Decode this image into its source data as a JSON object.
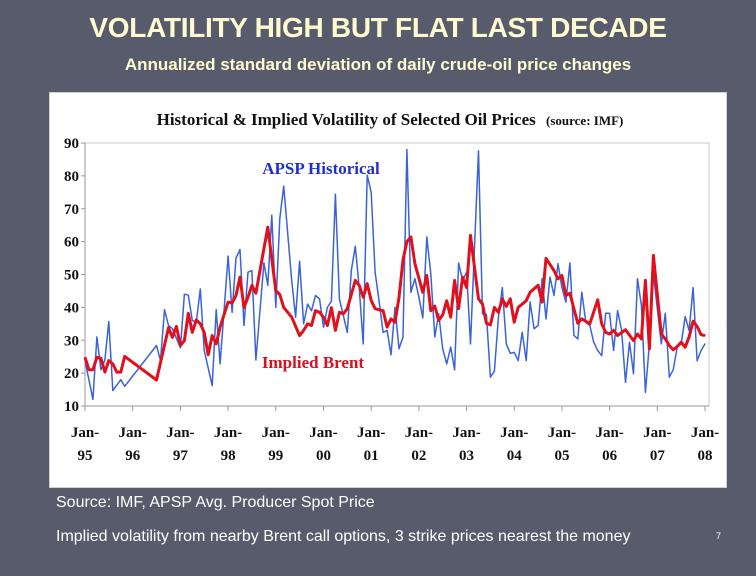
{
  "slide": {
    "title": "VOLATILITY HIGH BUT FLAT LAST DECADE",
    "subtitle": "Annualized standard deviation of daily crude-oil price changes",
    "source_note": "Source: IMF, APSP Avg. Producer Spot Price",
    "implied_note": "Implied volatility from nearby Brent call options, 3 strike prices nearest the money",
    "page_number": "7"
  },
  "chart_data": {
    "type": "line",
    "title": "Historical & Implied Volatility of Selected Oil Prices",
    "title_source": "(source: IMF)",
    "xlabel": "",
    "ylabel": "",
    "ylim": [
      10,
      90
    ],
    "yticks": [
      "90",
      "80",
      "70",
      "60",
      "50",
      "40",
      "30",
      "20",
      "10"
    ],
    "xlim": [
      "1995-01",
      "2008-02"
    ],
    "xticks": [
      {
        "date": "1995-01",
        "line1": "Jan-",
        "line2": "95"
      },
      {
        "date": "1996-01",
        "line1": "Jan-",
        "line2": "96"
      },
      {
        "date": "1997-01",
        "line1": "Jan-",
        "line2": "97"
      },
      {
        "date": "1998-01",
        "line1": "Jan-",
        "line2": "98"
      },
      {
        "date": "1999-01",
        "line1": "Jan-",
        "line2": "99"
      },
      {
        "date": "2000-01",
        "line1": "Jan-",
        "line2": "00"
      },
      {
        "date": "2001-01",
        "line1": "Jan-",
        "line2": "01"
      },
      {
        "date": "2002-01",
        "line1": "Jan-",
        "line2": "02"
      },
      {
        "date": "2003-01",
        "line1": "Jan-",
        "line2": "03"
      },
      {
        "date": "2004-01",
        "line1": "Jan-",
        "line2": "04"
      },
      {
        "date": "2005-01",
        "line1": "Jan-",
        "line2": "05"
      },
      {
        "date": "2006-01",
        "line1": "Jan-",
        "line2": "06"
      },
      {
        "date": "2007-01",
        "line1": "Jan-",
        "line2": "07"
      },
      {
        "date": "2008-01",
        "line1": "Jan-",
        "line2": "08"
      }
    ],
    "grid": false,
    "series": [
      {
        "name": "APSP Historical",
        "color": "#3a63d8",
        "label_color": "#2030c8",
        "points": [
          [
            "1995-01",
            23.8
          ],
          [
            "1995-03",
            12
          ],
          [
            "1995-04",
            31
          ],
          [
            "1995-05",
            21
          ],
          [
            "1995-06",
            24
          ],
          [
            "1995-07",
            35.7
          ],
          [
            "1995-08",
            14.7
          ],
          [
            "1995-10",
            18
          ],
          [
            "1995-11",
            16
          ],
          [
            "1996-07",
            28.4
          ],
          [
            "1996-08",
            23.8
          ],
          [
            "1996-09",
            39.3
          ],
          [
            "1996-10",
            34.5
          ],
          [
            "1996-11",
            33.5
          ],
          [
            "1997-01",
            27.7
          ],
          [
            "1997-02",
            44
          ],
          [
            "1997-03",
            43.7
          ],
          [
            "1997-04",
            36
          ],
          [
            "1997-05",
            35.5
          ],
          [
            "1997-06",
            45.6
          ],
          [
            "1997-07",
            26.9
          ],
          [
            "1997-09",
            16.2
          ],
          [
            "1997-10",
            39.3
          ],
          [
            "1997-11",
            22.8
          ],
          [
            "1998-01",
            55.6
          ],
          [
            "1998-02",
            38.5
          ],
          [
            "1998-03",
            55
          ],
          [
            "1998-04",
            57.6
          ],
          [
            "1998-05",
            34.5
          ],
          [
            "1998-06",
            50.7
          ],
          [
            "1998-07",
            51.2
          ],
          [
            "1998-08",
            24
          ],
          [
            "1998-10",
            53.5
          ],
          [
            "1998-11",
            46.7
          ],
          [
            "1998-12",
            68
          ],
          [
            "1999-01",
            40
          ],
          [
            "1999-02",
            67
          ],
          [
            "1999-03",
            76.9
          ],
          [
            "1999-05",
            48.2
          ],
          [
            "1999-06",
            37
          ],
          [
            "1999-07",
            54
          ],
          [
            "1999-08",
            35
          ],
          [
            "1999-09",
            41
          ],
          [
            "1999-10",
            39
          ],
          [
            "1999-11",
            43.6
          ],
          [
            "1999-12",
            42.6
          ],
          [
            "2000-01",
            34
          ],
          [
            "2000-02",
            40
          ],
          [
            "2000-03",
            41.9
          ],
          [
            "2000-04",
            74.4
          ],
          [
            "2000-05",
            42.6
          ],
          [
            "2000-07",
            32.4
          ],
          [
            "2000-08",
            51.2
          ],
          [
            "2000-09",
            58.6
          ],
          [
            "2000-10",
            46
          ],
          [
            "2000-11",
            28.9
          ],
          [
            "2000-12",
            80.2
          ],
          [
            "2001-01",
            75
          ],
          [
            "2001-02",
            50.7
          ],
          [
            "2001-03",
            41.9
          ],
          [
            "2001-04",
            32.4
          ],
          [
            "2001-05",
            33
          ],
          [
            "2001-06",
            25.6
          ],
          [
            "2001-07",
            40
          ],
          [
            "2001-08",
            27.4
          ],
          [
            "2001-09",
            31
          ],
          [
            "2001-10",
            88
          ],
          [
            "2001-11",
            44.6
          ],
          [
            "2001-12",
            48.7
          ],
          [
            "2002-01",
            43.1
          ],
          [
            "2002-02",
            36.8
          ],
          [
            "2002-03",
            61.4
          ],
          [
            "2002-04",
            50.2
          ],
          [
            "2002-05",
            31
          ],
          [
            "2002-06",
            38
          ],
          [
            "2002-07",
            27.4
          ],
          [
            "2002-08",
            22.8
          ],
          [
            "2002-09",
            27.9
          ],
          [
            "2002-10",
            21
          ],
          [
            "2002-11",
            53.5
          ],
          [
            "2002-12",
            48.2
          ],
          [
            "2003-01",
            50.7
          ],
          [
            "2003-02",
            28.9
          ],
          [
            "2003-04",
            87.6
          ],
          [
            "2003-05",
            38
          ],
          [
            "2003-06",
            37.8
          ],
          [
            "2003-07",
            18.8
          ],
          [
            "2003-08",
            20.6
          ],
          [
            "2003-09",
            37
          ],
          [
            "2003-10",
            46
          ],
          [
            "2003-11",
            28.9
          ],
          [
            "2003-12",
            26
          ],
          [
            "2004-01",
            26.3
          ],
          [
            "2004-02",
            23.8
          ],
          [
            "2004-03",
            32.4
          ],
          [
            "2004-04",
            23.8
          ],
          [
            "2004-05",
            41.6
          ],
          [
            "2004-06",
            33.5
          ],
          [
            "2004-07",
            34.5
          ],
          [
            "2004-08",
            48.7
          ],
          [
            "2004-09",
            36.5
          ],
          [
            "2004-10",
            49.2
          ],
          [
            "2004-11",
            43.6
          ],
          [
            "2004-12",
            53.3
          ],
          [
            "2005-01",
            46
          ],
          [
            "2005-02",
            41.6
          ],
          [
            "2005-03",
            53.5
          ],
          [
            "2005-04",
            31.5
          ],
          [
            "2005-05",
            30.4
          ],
          [
            "2005-06",
            44.6
          ],
          [
            "2005-07",
            35.5
          ],
          [
            "2005-08",
            34.5
          ],
          [
            "2005-09",
            29.4
          ],
          [
            "2005-10",
            26.9
          ],
          [
            "2005-11",
            25.3
          ],
          [
            "2005-12",
            38.2
          ],
          [
            "2006-01",
            38.2
          ],
          [
            "2006-02",
            26.9
          ],
          [
            "2006-03",
            39
          ],
          [
            "2006-04",
            33
          ],
          [
            "2006-05",
            17.2
          ],
          [
            "2006-06",
            29.4
          ],
          [
            "2006-07",
            19.8
          ],
          [
            "2006-08",
            48.7
          ],
          [
            "2006-09",
            40.6
          ],
          [
            "2006-10",
            14.2
          ],
          [
            "2006-11",
            28.9
          ],
          [
            "2006-12",
            50.2
          ],
          [
            "2007-02",
            28.9
          ],
          [
            "2007-03",
            38.2
          ],
          [
            "2007-04",
            18.8
          ],
          [
            "2007-05",
            21
          ],
          [
            "2007-06",
            27.9
          ],
          [
            "2007-07",
            28.9
          ],
          [
            "2007-08",
            37.2
          ],
          [
            "2007-09",
            33
          ],
          [
            "2007-10",
            46
          ],
          [
            "2007-11",
            23.8
          ],
          [
            "2007-12",
            26.9
          ],
          [
            "2008-01",
            28.9
          ]
        ]
      },
      {
        "name": "Implied Brent",
        "color": "#e0101c",
        "label_color": "#d81020",
        "points": [
          [
            "1995-01",
            24.8
          ],
          [
            "1995-02",
            21
          ],
          [
            "1995-03",
            21
          ],
          [
            "1995-04",
            24.8
          ],
          [
            "1995-05",
            24.5
          ],
          [
            "1995-06",
            20.3
          ],
          [
            "1995-07",
            23.8
          ],
          [
            "1995-08",
            22.8
          ],
          [
            "1995-09",
            20.3
          ],
          [
            "1995-10",
            20.3
          ],
          [
            "1995-11",
            25.1
          ],
          [
            "1996-07",
            17.9
          ],
          [
            "1996-10",
            33.8
          ],
          [
            "1996-11",
            30.9
          ],
          [
            "1996-12",
            34.2
          ],
          [
            "1997-01",
            28.4
          ],
          [
            "1997-02",
            29.9
          ],
          [
            "1997-03",
            38.2
          ],
          [
            "1997-04",
            32.4
          ],
          [
            "1997-05",
            36.2
          ],
          [
            "1997-06",
            35
          ],
          [
            "1997-07",
            32.4
          ],
          [
            "1997-08",
            25.6
          ],
          [
            "1997-09",
            31.4
          ],
          [
            "1997-10",
            28.9
          ],
          [
            "1997-11",
            34
          ],
          [
            "1998-01",
            41.6
          ],
          [
            "1998-02",
            41.3
          ],
          [
            "1998-03",
            43.6
          ],
          [
            "1998-04",
            49.2
          ],
          [
            "1998-05",
            40
          ],
          [
            "1998-06",
            43.1
          ],
          [
            "1998-07",
            46.7
          ],
          [
            "1998-08",
            44.3
          ],
          [
            "1998-11",
            64.4
          ],
          [
            "1999-01",
            45.1
          ],
          [
            "1999-02",
            43.9
          ],
          [
            "1999-03",
            40
          ],
          [
            "1999-05",
            37
          ],
          [
            "1999-07",
            31.4
          ],
          [
            "1999-08",
            33
          ],
          [
            "1999-09",
            35
          ],
          [
            "1999-10",
            34.5
          ],
          [
            "1999-11",
            39
          ],
          [
            "1999-12",
            38.5
          ],
          [
            "2000-01",
            37
          ],
          [
            "2000-02",
            34.5
          ],
          [
            "2000-03",
            39.9
          ],
          [
            "2000-04",
            33
          ],
          [
            "2000-05",
            38.5
          ],
          [
            "2000-06",
            38
          ],
          [
            "2000-07",
            39.6
          ],
          [
            "2000-09",
            48.2
          ],
          [
            "2000-10",
            46.7
          ],
          [
            "2000-11",
            43.1
          ],
          [
            "2000-12",
            47.2
          ],
          [
            "2001-01",
            42.1
          ],
          [
            "2001-02",
            39.6
          ],
          [
            "2001-04",
            39
          ],
          [
            "2001-05",
            34
          ],
          [
            "2001-06",
            36.5
          ],
          [
            "2001-07",
            35.5
          ],
          [
            "2001-08",
            43
          ],
          [
            "2001-09",
            54.4
          ],
          [
            "2001-10",
            60
          ],
          [
            "2001-11",
            61.4
          ],
          [
            "2001-12",
            53.3
          ],
          [
            "2002-02",
            44.6
          ],
          [
            "2002-03",
            49.7
          ],
          [
            "2002-04",
            39
          ],
          [
            "2002-05",
            40.4
          ],
          [
            "2002-06",
            36
          ],
          [
            "2002-07",
            37.7
          ],
          [
            "2002-08",
            42
          ],
          [
            "2002-09",
            37
          ],
          [
            "2002-10",
            48.2
          ],
          [
            "2002-11",
            39.6
          ],
          [
            "2002-12",
            49.2
          ],
          [
            "2003-01",
            46
          ],
          [
            "2003-02",
            61.9
          ],
          [
            "2003-03",
            52.2
          ],
          [
            "2003-04",
            42.6
          ],
          [
            "2003-05",
            41
          ],
          [
            "2003-06",
            35.2
          ],
          [
            "2003-07",
            34.7
          ],
          [
            "2003-08",
            40
          ],
          [
            "2003-09",
            38.5
          ],
          [
            "2003-10",
            42.6
          ],
          [
            "2003-11",
            40.3
          ],
          [
            "2003-12",
            42.6
          ],
          [
            "2004-01",
            35.5
          ],
          [
            "2004-02",
            40
          ],
          [
            "2004-04",
            42
          ],
          [
            "2004-05",
            44.6
          ],
          [
            "2004-07",
            46.7
          ],
          [
            "2004-08",
            41.6
          ],
          [
            "2004-09",
            54.9
          ],
          [
            "2004-11",
            51.2
          ],
          [
            "2004-12",
            48.7
          ],
          [
            "2005-01",
            49.7
          ],
          [
            "2005-02",
            43.6
          ],
          [
            "2005-03",
            44.3
          ],
          [
            "2005-04",
            39.6
          ],
          [
            "2005-05",
            35.2
          ],
          [
            "2005-06",
            36.5
          ],
          [
            "2005-08",
            35
          ],
          [
            "2005-10",
            42.3
          ],
          [
            "2005-11",
            35
          ],
          [
            "2005-12",
            32.4
          ],
          [
            "2006-01",
            31.9
          ],
          [
            "2006-02",
            33
          ],
          [
            "2006-03",
            31.4
          ],
          [
            "2006-05",
            33.2
          ],
          [
            "2006-07",
            29.9
          ],
          [
            "2006-08",
            31.9
          ],
          [
            "2006-09",
            30.4
          ],
          [
            "2006-10",
            48.2
          ],
          [
            "2006-11",
            27.4
          ],
          [
            "2006-12",
            55.8
          ],
          [
            "2007-02",
            31.9
          ],
          [
            "2007-03",
            30.4
          ],
          [
            "2007-04",
            28.4
          ],
          [
            "2007-05",
            27.1
          ],
          [
            "2007-06",
            28.1
          ],
          [
            "2007-07",
            29.4
          ],
          [
            "2007-08",
            27.9
          ],
          [
            "2007-09",
            31
          ],
          [
            "2007-10",
            35.8
          ],
          [
            "2007-11",
            34.2
          ],
          [
            "2007-12",
            31.7
          ],
          [
            "2008-01",
            31.4
          ]
        ]
      }
    ]
  }
}
